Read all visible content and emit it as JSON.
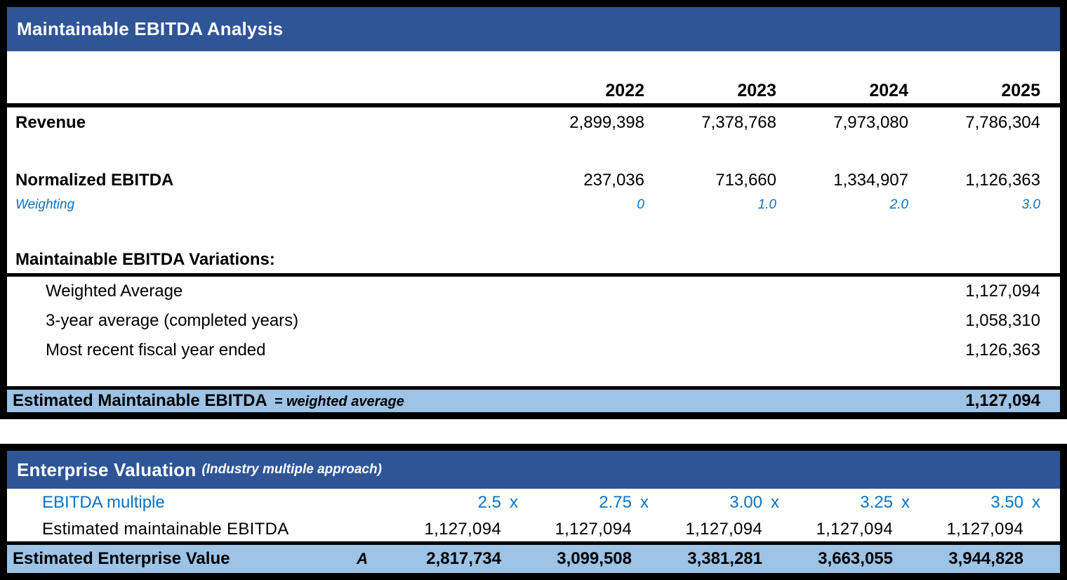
{
  "colors": {
    "header_bg": "#2F5597",
    "highlight_bg": "#9DC3E6",
    "accent_text": "#0B72C5",
    "border": "#000000"
  },
  "maintainable": {
    "title": "Maintainable EBITDA Analysis",
    "years": [
      "2022",
      "2023",
      "2024",
      "2025"
    ],
    "revenue": {
      "label": "Revenue",
      "values": [
        "2,899,398",
        "7,378,768",
        "7,973,080",
        "7,786,304"
      ]
    },
    "normalized": {
      "label": "Normalized EBITDA",
      "values": [
        "237,036",
        "713,660",
        "1,334,907",
        "1,126,363"
      ]
    },
    "weighting": {
      "label": "Weighting",
      "values": [
        "0",
        "1.0",
        "2.0",
        "3.0"
      ]
    },
    "variations": {
      "header": "Maintainable EBITDA Variations:",
      "items": [
        {
          "label": "Weighted Average",
          "value": "1,127,094"
        },
        {
          "label": "3-year average (completed years)",
          "value": "1,058,310"
        },
        {
          "label": "Most recent fiscal year ended",
          "value": "1,126,363"
        }
      ]
    },
    "total": {
      "label": "Estimated Maintainable EBITDA",
      "note": "= weighted average",
      "value": "1,127,094"
    }
  },
  "valuation": {
    "title": "Enterprise Valuation",
    "subtitle": "(Industry multiple approach)",
    "multiple": {
      "label": "EBITDA multiple",
      "suffix": "x",
      "values": [
        "2.5",
        "2.75",
        "3.00",
        "3.25",
        "3.50"
      ]
    },
    "ebitda": {
      "label": "Estimated maintainable EBITDA",
      "values": [
        "1,127,094",
        "1,127,094",
        "1,127,094",
        "1,127,094",
        "1,127,094"
      ]
    },
    "enterprise": {
      "label": "Estimated Enterprise Value",
      "ref": "A",
      "values": [
        "2,817,734",
        "3,099,508",
        "3,381,281",
        "3,663,055",
        "3,944,828"
      ]
    }
  }
}
